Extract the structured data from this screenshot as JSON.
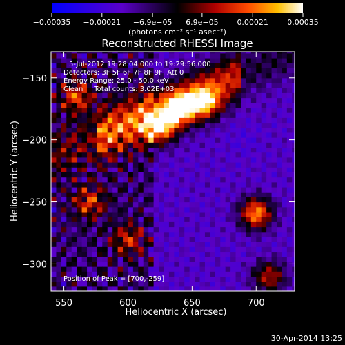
{
  "chart_data": {
    "type": "heatmap",
    "title": "Reconstructed RHESSI Image",
    "xlabel": "Heliocentric X (arcsec)",
    "ylabel": "Heliocentric Y (arcsec)",
    "xlim": [
      540,
      730
    ],
    "ylim": [
      -322,
      -129
    ],
    "xticks": [
      550,
      600,
      650,
      700
    ],
    "yticks": [
      -150,
      -200,
      -250,
      -300
    ],
    "xtick_labels": [
      "550",
      "600",
      "650",
      "700"
    ],
    "ytick_labels": [
      "−150",
      "−200",
      "−250",
      "−300"
    ],
    "colorbar": {
      "range": [
        -0.00035,
        0.00035
      ],
      "ticks": [
        -0.00035,
        -0.00021,
        -6.9e-05,
        6.9e-05,
        0.00021,
        0.00035
      ],
      "tick_labels": [
        "−0.00035",
        "−0.00021",
        "−6.9e−05",
        "6.9e−05",
        "0.00021",
        "0.00035"
      ],
      "unit_label": "(photons cm⁻² s⁻¹ asec⁻²)"
    },
    "annotations": [
      "5-Jul-2012 19:28:04.000 to 19:29:56.000",
      "Detectors: 3F 5F 6F 7F 8F 9F, Att 0",
      "Energy Range: 25.0 - 50.0 keV",
      "Clean     Total counts: 3.02E+03"
    ],
    "peak_label": "Position of Peak = [700,-259]",
    "peak": [
      700,
      -259
    ],
    "features": [
      {
        "x": 625,
        "y": -190,
        "value": 0.0003
      },
      {
        "x": 640,
        "y": -175,
        "value": 0.00028
      },
      {
        "x": 660,
        "y": -170,
        "value": 0.00026
      },
      {
        "x": 700,
        "y": -259,
        "value": 0.00035
      },
      {
        "x": 560,
        "y": -165,
        "value": 0.0002
      },
      {
        "x": 570,
        "y": -250,
        "value": 0.00018
      },
      {
        "x": 600,
        "y": -280,
        "value": 0.00016
      },
      {
        "x": 710,
        "y": -310,
        "value": 0.00022
      },
      {
        "x": 690,
        "y": -200,
        "value": -8e-05
      }
    ],
    "grid": false
  },
  "footer": {
    "timestamp": "30-Apr-2014 13:25"
  }
}
